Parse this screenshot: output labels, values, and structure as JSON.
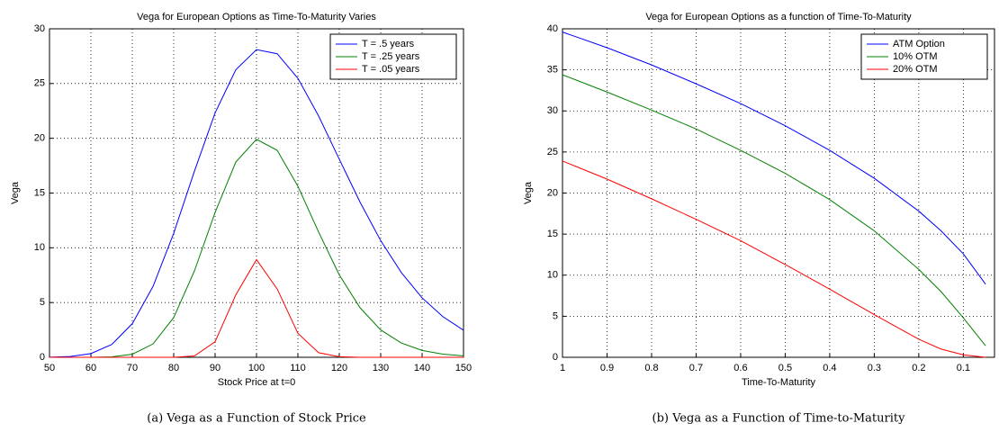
{
  "chart_data": [
    {
      "type": "line",
      "title": "Vega for European Options as Time-To-Maturity Varies",
      "xlabel": "Stock Price at t=0",
      "ylabel": "Vega",
      "caption": "(a) Vega as a Function of Stock Price",
      "x": [
        50,
        55,
        60,
        65,
        70,
        75,
        80,
        85,
        90,
        95,
        100,
        105,
        110,
        115,
        120,
        125,
        130,
        135,
        140,
        145,
        150
      ],
      "series": [
        {
          "name": "T = .5 years",
          "color": "#0000ff",
          "values": [
            0.01,
            0.07,
            0.34,
            1.16,
            3.07,
            6.47,
            11.33,
            16.99,
            22.32,
            26.26,
            28.1,
            27.72,
            25.48,
            22.04,
            18.09,
            14.18,
            10.65,
            7.73,
            5.43,
            3.72,
            2.47
          ]
        },
        {
          "name": "T = .25 years",
          "color": "#008000",
          "values": [
            0,
            0,
            0,
            0.04,
            0.28,
            1.22,
            3.63,
            7.88,
            13.23,
            17.83,
            19.91,
            18.9,
            15.62,
            11.44,
            7.52,
            4.53,
            2.5,
            1.3,
            0.63,
            0.29,
            0.13
          ]
        },
        {
          "name": "T = .05 years",
          "color": "#ff0000",
          "values": [
            0,
            0,
            0,
            0,
            0,
            0,
            0,
            0.12,
            1.42,
            5.7,
            8.92,
            6.24,
            2.19,
            0.42,
            0.05,
            0,
            0,
            0,
            0,
            0,
            0
          ]
        }
      ],
      "xlim": [
        50,
        150
      ],
      "xticks": [
        50,
        60,
        70,
        80,
        90,
        100,
        110,
        120,
        130,
        140,
        150
      ],
      "ylim": [
        0,
        30
      ],
      "yticks": [
        0,
        5,
        10,
        15,
        20,
        25,
        30
      ],
      "grid": true,
      "legend": "upper right"
    },
    {
      "type": "line",
      "title": "Vega for European Options as a function of Time-To-Maturity",
      "xlabel": "Time-To-Maturity",
      "ylabel": "Vega",
      "caption": "(b) Vega as a Function of Time-to-Maturity",
      "x": [
        1,
        0.9,
        0.8,
        0.7,
        0.6,
        0.5,
        0.4,
        0.3,
        0.2,
        0.15,
        0.1,
        0.05
      ],
      "series": [
        {
          "name": "ATM Option",
          "color": "#0000ff",
          "values": [
            39.6,
            37.7,
            35.6,
            33.3,
            30.9,
            28.2,
            25.2,
            21.8,
            17.8,
            15.4,
            12.6,
            8.9
          ]
        },
        {
          "name": "10% OTM",
          "color": "#008000",
          "values": [
            34.4,
            32.3,
            30.1,
            27.8,
            25.2,
            22.4,
            19.2,
            15.4,
            10.7,
            8.0,
            4.8,
            1.4
          ]
        },
        {
          "name": "20% OTM",
          "color": "#ff0000",
          "values": [
            23.9,
            21.7,
            19.3,
            16.8,
            14.2,
            11.3,
            8.3,
            5.2,
            2.2,
            1.0,
            0.3,
            0.0
          ]
        }
      ],
      "xlim": [
        1,
        0.03
      ],
      "xticks": [
        1,
        0.9,
        0.8,
        0.7,
        0.6,
        0.5,
        0.4,
        0.3,
        0.2,
        0.1
      ],
      "ylim": [
        0,
        40
      ],
      "yticks": [
        0,
        5,
        10,
        15,
        20,
        25,
        30,
        35,
        40
      ],
      "grid": true,
      "legend": "upper right"
    }
  ]
}
